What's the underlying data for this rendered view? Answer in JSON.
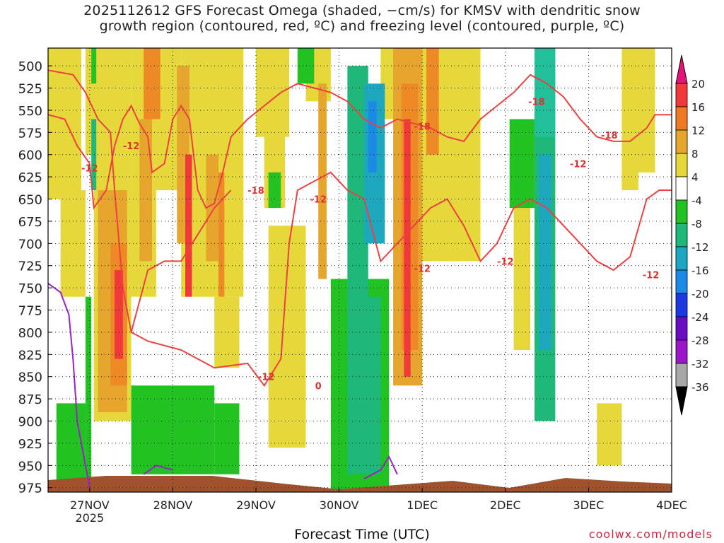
{
  "title_line1": "2025112612 GFS Forecast Omega (shaded, −cm/s) for KMSV with dendritic snow",
  "title_line2": "growth region (contoured, red, ºC) and freezing level (contoured, purple, ºC)",
  "xlabel": "Forecast Time (UTC)",
  "credit": "coolwx.com/models",
  "chart_data": {
    "type": "heatmap",
    "x_axis": {
      "ticks": [
        "27NOV",
        "28NOV",
        "29NOV",
        "30NOV",
        "1DEC",
        "2DEC",
        "3DEC",
        "4DEC"
      ],
      "tick_sublabel": "2025",
      "range": [
        "2025-11-26T12",
        "2025-12-04T00"
      ]
    },
    "y_axis": {
      "label": "",
      "ticks": [
        500,
        525,
        550,
        575,
        600,
        625,
        650,
        675,
        700,
        725,
        750,
        775,
        800,
        825,
        850,
        875,
        900,
        925,
        950,
        975
      ],
      "range": [
        480,
        980
      ],
      "inverted": true
    },
    "grid": true,
    "colorbar": {
      "levels": [
        20,
        16,
        12,
        8,
        4,
        -4,
        -8,
        -12,
        -16,
        -20,
        -24,
        -28,
        -32,
        -36
      ],
      "colors": [
        "#e8117a",
        "#f03a3a",
        "#ee7a26",
        "#e6a62e",
        "#e6d83a",
        "#ffffff",
        "#23c223",
        "#1eb87a",
        "#1ea8c0",
        "#1a8ae6",
        "#1a3ae0",
        "#6a0dc0",
        "#9a18c8",
        "#a8a8a8",
        "#000000"
      ],
      "tick_labels": [
        "20",
        "16",
        "12",
        "8",
        "4",
        "-4",
        "-8",
        "-12",
        "-16",
        "-20",
        "-24",
        "-28",
        "-32",
        "-36"
      ]
    },
    "contour_labels_red": [
      {
        "text": "-12",
        "x": "2025-11-27T00",
        "y": 615
      },
      {
        "text": "-12",
        "x": "2025-11-27T12",
        "y": 590
      },
      {
        "text": "-18",
        "x": "2025-11-29T00",
        "y": 640
      },
      {
        "text": "-12",
        "x": "2025-11-29T18",
        "y": 650
      },
      {
        "text": "-12",
        "x": "2025-11-29T03",
        "y": 850
      },
      {
        "text": "0",
        "x": "2025-11-29T18",
        "y": 860
      },
      {
        "text": "-18",
        "x": "2025-12-01T00",
        "y": 568
      },
      {
        "text": "-12",
        "x": "2025-12-01T00",
        "y": 728
      },
      {
        "text": "-18",
        "x": "2025-12-02T09",
        "y": 540
      },
      {
        "text": "-12",
        "x": "2025-12-02T00",
        "y": 720
      },
      {
        "text": "-12",
        "x": "2025-12-02T21",
        "y": 610
      },
      {
        "text": "-18",
        "x": "2025-12-03T06",
        "y": 578
      },
      {
        "text": "-12",
        "x": "2025-12-03T18",
        "y": 735
      }
    ]
  }
}
